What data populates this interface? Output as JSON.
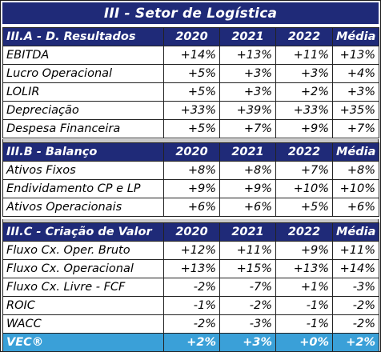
{
  "title": "III - Setor de Logística",
  "sections": [
    {
      "label": "III.A - D. Resultados",
      "headers": [
        "2020",
        "2021",
        "2022",
        "Média"
      ],
      "rows": [
        {
          "label": "EBITDA",
          "values": [
            "+14%",
            "+13%",
            "+11%",
            "+13%"
          ]
        },
        {
          "label": "Lucro Operacional",
          "values": [
            "+5%",
            "+3%",
            "+3%",
            "+4%"
          ]
        },
        {
          "label": "LOLIR",
          "values": [
            "+5%",
            "+3%",
            "+2%",
            "+3%"
          ]
        },
        {
          "label": "Depreciação",
          "values": [
            "+33%",
            "+39%",
            "+33%",
            "+35%"
          ]
        },
        {
          "label": "Despesa Financeira",
          "values": [
            "+5%",
            "+7%",
            "+9%",
            "+7%"
          ]
        }
      ]
    },
    {
      "label": "III.B - Balanço",
      "headers": [
        "2020",
        "2021",
        "2022",
        "Média"
      ],
      "rows": [
        {
          "label": "Ativos Fixos",
          "values": [
            "+8%",
            "+8%",
            "+7%",
            "+8%"
          ]
        },
        {
          "label": "Endividamento CP e LP",
          "values": [
            "+9%",
            "+9%",
            "+10%",
            "+10%"
          ]
        },
        {
          "label": "Ativos Operacionais",
          "values": [
            "+6%",
            "+6%",
            "+5%",
            "+6%"
          ]
        }
      ]
    },
    {
      "label": "III.C - Criação de Valor",
      "headers": [
        "2020",
        "2021",
        "2022",
        "Média"
      ],
      "rows": [
        {
          "label": "Fluxo Cx. Oper. Bruto",
          "values": [
            "+12%",
            "+11%",
            "+9%",
            "+11%"
          ]
        },
        {
          "label": "Fluxo Cx. Operacional",
          "values": [
            "+13%",
            "+15%",
            "+13%",
            "+14%"
          ]
        },
        {
          "label": "Fluxo Cx. Livre - FCF",
          "values": [
            "-2%",
            "-7%",
            "+1%",
            "-3%"
          ]
        },
        {
          "label": "ROIC",
          "values": [
            "-1%",
            "-2%",
            "-1%",
            "-2%"
          ]
        },
        {
          "label": "WACC",
          "values": [
            "-2%",
            "-3%",
            "-1%",
            "-2%"
          ]
        }
      ],
      "total": {
        "label": "VEC®",
        "values": [
          "+2%",
          "+3%",
          "+0%",
          "+2%"
        ]
      }
    }
  ],
  "colors": {
    "header_bg": "#1f2a78",
    "highlight_bg": "#3aa0d8",
    "gap_bg": "#c8c8c8"
  }
}
